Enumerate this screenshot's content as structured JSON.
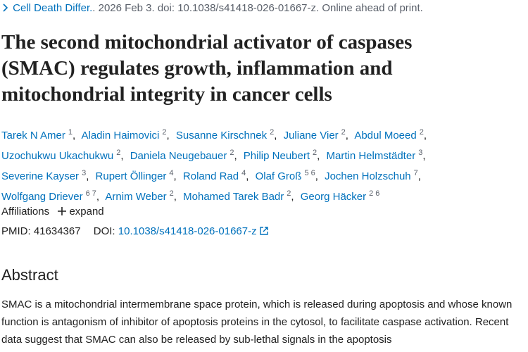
{
  "citation": {
    "journal": "Cell Death Differ.",
    "details": ". 2026 Feb 3. doi: 10.1038/s41418-026-01667-z. Online ahead of print."
  },
  "title": "The second mitochondrial activator of caspases (SMAC) regulates growth, inflammation and mitochondrial integrity in cancer cells",
  "author_separator": ",",
  "authors": [
    {
      "name": "Tarek N Amer",
      "aff": "1"
    },
    {
      "name": "Aladin Haimovici",
      "aff": "2"
    },
    {
      "name": "Susanne Kirschnek",
      "aff": "2"
    },
    {
      "name": "Juliane Vier",
      "aff": "2"
    },
    {
      "name": "Abdul Moeed",
      "aff": "2"
    },
    {
      "name": "Uzochukwu Ukachukwu",
      "aff": "2"
    },
    {
      "name": "Daniela Neugebauer",
      "aff": "2"
    },
    {
      "name": "Philip Neubert",
      "aff": "2"
    },
    {
      "name": "Martin Helmstädter",
      "aff": "3"
    },
    {
      "name": "Severine Kayser",
      "aff": "3"
    },
    {
      "name": "Rupert Öllinger",
      "aff": "4"
    },
    {
      "name": "Roland Rad",
      "aff": "4"
    },
    {
      "name": "Olaf Groß",
      "aff": "5 6"
    },
    {
      "name": "Jochen Holzschuh",
      "aff": "7"
    },
    {
      "name": "Wolfgang Driever",
      "aff": "6 7"
    },
    {
      "name": "Arnim Weber",
      "aff": "2"
    },
    {
      "name": "Mohamed Tarek Badr",
      "aff": "2"
    },
    {
      "name": "Georg Häcker",
      "aff": "2 6"
    }
  ],
  "affiliations": {
    "label": "Affiliations",
    "toggle": "expand"
  },
  "ids": {
    "pmid_label": "PMID:",
    "pmid": "41634367",
    "doi_label": "DOI:",
    "doi": "10.1038/s41418-026-01667-z"
  },
  "abstract": {
    "heading": "Abstract",
    "text": "SMAC is a mitochondrial intermembrane space protein, which is released during apoptosis and whose known function is antagonism of inhibitor of apoptosis proteins in the cytosol, to facilitate caspase activation. Recent data suggest that SMAC can also be released by sub-lethal signals in the apoptosis"
  }
}
